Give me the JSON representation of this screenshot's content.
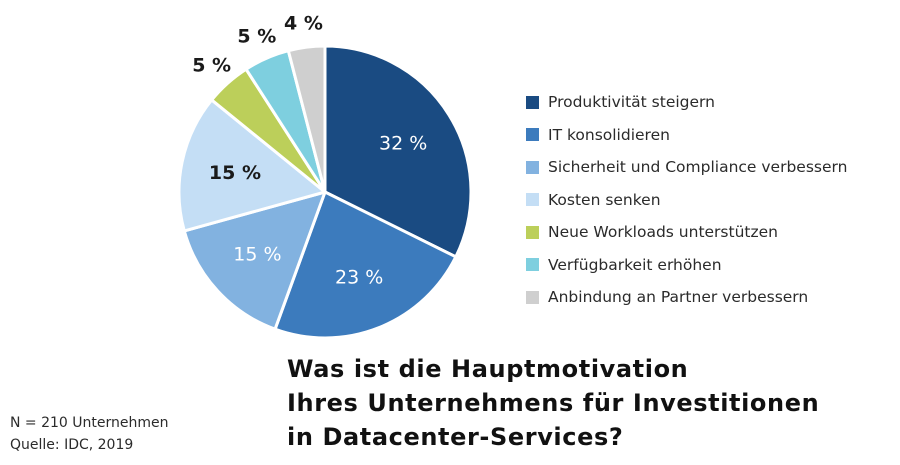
{
  "chart_data": {
    "type": "pie",
    "title_lines": [
      "Was ist die Hauptmotivation",
      "Ihres Unternehmens für Investitionen",
      "in Datacenter-Services?"
    ],
    "slices": [
      {
        "label": "Produktivität steigern",
        "value": 32,
        "value_label": "32 %",
        "color": "#1a4b82",
        "label_color": "#ffffff"
      },
      {
        "label": "IT konsolidieren",
        "value": 23,
        "value_label": "23 %",
        "color": "#3c7bbd",
        "label_color": "#ffffff"
      },
      {
        "label": "Sicherheit und Compliance verbessern",
        "value": 15,
        "value_label": "15 %",
        "color": "#82b2e0",
        "label_color": "#ffffff"
      },
      {
        "label": "Kosten senken",
        "value": 15,
        "value_label": "15 %",
        "color": "#c4def5",
        "label_color": "#1a1a1a"
      },
      {
        "label": "Neue Workloads unterstützen",
        "value": 5,
        "value_label": "5 %",
        "color": "#bccf5a",
        "label_color": "#1a1a1a"
      },
      {
        "label": "Verfügbarkeit erhöhen",
        "value": 5,
        "value_label": "5 %",
        "color": "#7ecfdf",
        "label_color": "#1a1a1a"
      },
      {
        "label": "Anbindung an Partner verbessern",
        "value": 4,
        "value_label": "4 %",
        "color": "#cfcfcf",
        "label_color": "#1a1a1a"
      }
    ],
    "legend_position": "right"
  },
  "footnote": {
    "sample": "N = 210 Unternehmen",
    "source": "Quelle: IDC, 2019"
  }
}
